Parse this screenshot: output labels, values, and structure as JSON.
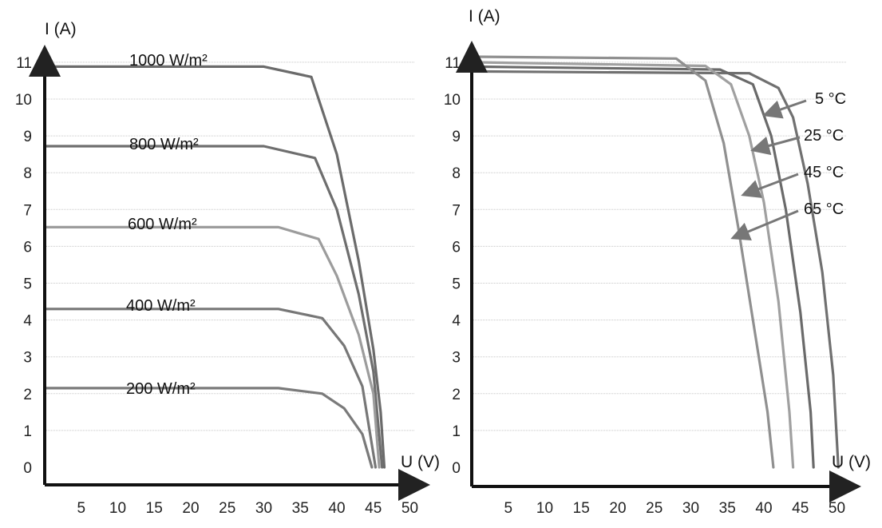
{
  "chart_data": [
    {
      "type": "line",
      "xlabel": "U (V)",
      "ylabel": "I (A)",
      "xlim": [
        0,
        52
      ],
      "ylim": [
        -0.3,
        11.5
      ],
      "x_ticks": [
        5,
        10,
        15,
        20,
        25,
        30,
        35,
        40,
        45,
        50
      ],
      "y_ticks": [
        0,
        1,
        2,
        3,
        4,
        5,
        6,
        7,
        8,
        9,
        10,
        11
      ],
      "grid": "horizontal",
      "series": [
        {
          "name": "1000 W/m²",
          "color": "#6b6b6b",
          "points": [
            [
              0,
              10.88
            ],
            [
              30,
              10.88
            ],
            [
              36.5,
              10.6
            ],
            [
              40,
              8.5
            ],
            [
              43,
              5.6
            ],
            [
              45,
              3.2
            ],
            [
              46,
              1.5
            ],
            [
              46.5,
              0
            ]
          ]
        },
        {
          "name": "800 W/m²",
          "color": "#6e6e6e",
          "points": [
            [
              0,
              8.72
            ],
            [
              30,
              8.72
            ],
            [
              37,
              8.4
            ],
            [
              40,
              7.0
            ],
            [
              43,
              4.7
            ],
            [
              45,
              2.6
            ],
            [
              46.2,
              0
            ]
          ]
        },
        {
          "name": "600 W/m²",
          "color": "#9c9c9c",
          "points": [
            [
              0,
              6.52
            ],
            [
              32,
              6.52
            ],
            [
              37.5,
              6.2
            ],
            [
              40,
              5.2
            ],
            [
              43,
              3.6
            ],
            [
              45,
              2.0
            ],
            [
              45.8,
              0
            ]
          ]
        },
        {
          "name": "400 W/m²",
          "color": "#777777",
          "points": [
            [
              0,
              4.3
            ],
            [
              32,
              4.3
            ],
            [
              38,
              4.05
            ],
            [
              41,
              3.3
            ],
            [
              43.5,
              2.2
            ],
            [
              45.3,
              0
            ]
          ]
        },
        {
          "name": "200 W/m²",
          "color": "#7a7a7a",
          "points": [
            [
              0,
              2.15
            ],
            [
              32,
              2.15
            ],
            [
              38,
              2.0
            ],
            [
              41,
              1.6
            ],
            [
              43.5,
              0.9
            ],
            [
              44.8,
              0
            ]
          ]
        }
      ]
    },
    {
      "type": "line",
      "xlabel": "U (V)",
      "ylabel": "I (A)",
      "xlim": [
        0,
        52
      ],
      "ylim": [
        -0.3,
        11.5
      ],
      "x_ticks": [
        5,
        10,
        15,
        20,
        25,
        30,
        35,
        40,
        45,
        50
      ],
      "y_ticks": [
        0,
        1,
        2,
        3,
        4,
        5,
        6,
        7,
        8,
        9,
        10,
        11
      ],
      "grid": "horizontal",
      "series": [
        {
          "name": "5 °C",
          "color": "#707070",
          "points": [
            [
              0,
              10.75
            ],
            [
              38,
              10.7
            ],
            [
              42,
              10.3
            ],
            [
              44,
              9.5
            ],
            [
              46,
              7.7
            ],
            [
              48,
              5.3
            ],
            [
              49.5,
              2.5
            ],
            [
              50.2,
              0
            ]
          ]
        },
        {
          "name": "25 °C",
          "color": "#6a6a6a",
          "points": [
            [
              0,
              10.88
            ],
            [
              34,
              10.8
            ],
            [
              38.5,
              10.4
            ],
            [
              41,
              9.0
            ],
            [
              43,
              7.0
            ],
            [
              45,
              4.2
            ],
            [
              46.4,
              1.5
            ],
            [
              46.8,
              0
            ]
          ]
        },
        {
          "name": "45 °C",
          "color": "#a0a0a0",
          "points": [
            [
              0,
              11.0
            ],
            [
              32,
              10.9
            ],
            [
              35.5,
              10.4
            ],
            [
              38,
              9.0
            ],
            [
              40,
              7.2
            ],
            [
              42,
              4.5
            ],
            [
              43.5,
              1.5
            ],
            [
              44,
              0
            ]
          ]
        },
        {
          "name": "65 °C",
          "color": "#909090",
          "points": [
            [
              0,
              11.15
            ],
            [
              28,
              11.1
            ],
            [
              32,
              10.5
            ],
            [
              34.5,
              8.8
            ],
            [
              36.5,
              6.5
            ],
            [
              38.5,
              4.0
            ],
            [
              40.5,
              1.5
            ],
            [
              41.3,
              0
            ]
          ]
        }
      ]
    }
  ]
}
